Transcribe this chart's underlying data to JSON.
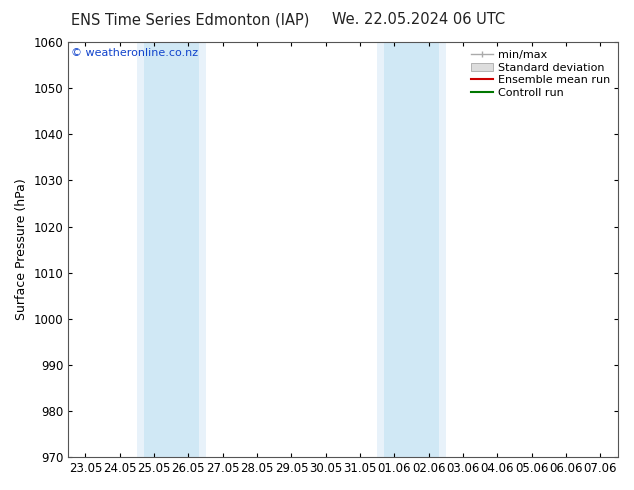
{
  "title_left": "ENS Time Series Edmonton (IAP)",
  "title_right": "We. 22.05.2024 06 UTC",
  "ylabel": "Surface Pressure (hPa)",
  "ylim": [
    970,
    1060
  ],
  "yticks": [
    970,
    980,
    990,
    1000,
    1010,
    1020,
    1030,
    1040,
    1050,
    1060
  ],
  "xtick_labels": [
    "23.05",
    "24.05",
    "25.05",
    "26.05",
    "27.05",
    "28.05",
    "29.05",
    "30.05",
    "31.05",
    "01.06",
    "02.06",
    "03.06",
    "04.06",
    "05.06",
    "06.06",
    "07.06"
  ],
  "shaded_bands": [
    {
      "xstart": 2,
      "xend": 3,
      "xstart2": 3,
      "xend2": 4
    },
    {
      "xstart": 9,
      "xend": 10,
      "xstart2": 10,
      "xend2": 11
    }
  ],
  "shade_color_light": "#e8f2fa",
  "shade_color_main": "#d0e8f5",
  "watermark": "© weatheronline.co.nz",
  "legend_labels": [
    "min/max",
    "Standard deviation",
    "Ensemble mean run",
    "Controll run"
  ],
  "legend_line_color": "#aaaaaa",
  "legend_box_color": "#dddddd",
  "legend_ens_color": "#cc0000",
  "legend_ctrl_color": "#007700",
  "background_color": "#ffffff",
  "plot_bg_color": "#ffffff",
  "title_fontsize": 10.5,
  "tick_fontsize": 8.5,
  "ylabel_fontsize": 9,
  "legend_fontsize": 8
}
